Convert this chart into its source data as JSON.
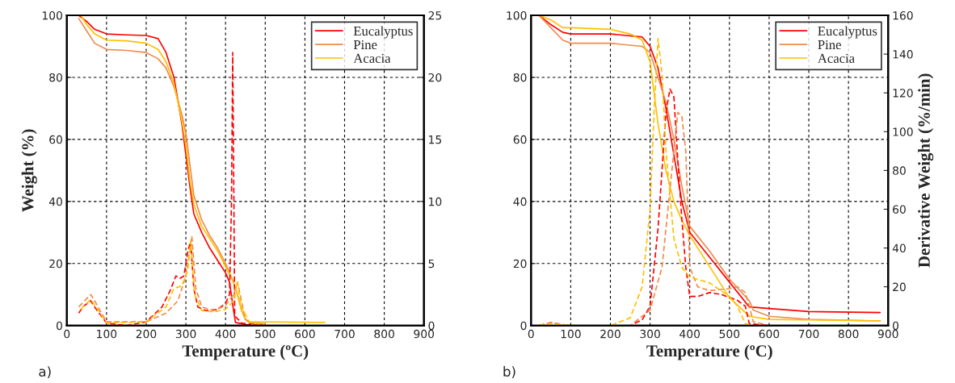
{
  "chart_data": [
    {
      "type": "line",
      "xlabel": "Temperature (ºC)",
      "ylabel": "Weight (%)",
      "xlim": [
        0,
        900
      ],
      "xticks": [
        0,
        100,
        200,
        300,
        400,
        500,
        600,
        700,
        800,
        900
      ],
      "ylim": [
        0,
        100
      ],
      "yticks": [
        0,
        20,
        40,
        60,
        80,
        100
      ],
      "y2lim": [
        0,
        25
      ],
      "y2ticks": [
        0,
        5,
        10,
        15,
        20,
        25
      ],
      "grid": true,
      "legend": "top right",
      "annotations": [
        "a)"
      ],
      "series": [
        {
          "name": "Eucalyptus",
          "color": "#ff0000",
          "x": [
            30,
            50,
            70,
            100,
            150,
            200,
            230,
            250,
            270,
            290,
            300,
            310,
            320,
            340,
            360,
            380,
            400,
            410,
            420,
            425,
            450,
            500
          ],
          "values": [
            100,
            98,
            95.5,
            94,
            93.7,
            93.5,
            92.5,
            88,
            80,
            65,
            55,
            45,
            36,
            30,
            25,
            21,
            17,
            14,
            5,
            1,
            0.3,
            0
          ]
        },
        {
          "name": "Pine",
          "color": "#f08a4b",
          "x": [
            30,
            50,
            70,
            100,
            150,
            200,
            230,
            250,
            270,
            290,
            300,
            310,
            320,
            340,
            360,
            380,
            400,
            420,
            430,
            440,
            450,
            460,
            500
          ],
          "values": [
            99,
            95,
            91,
            89,
            88.7,
            88,
            86,
            83,
            77,
            68,
            62,
            52,
            42,
            34,
            29,
            25,
            20,
            14,
            10,
            5,
            2,
            1,
            0.5
          ]
        },
        {
          "name": "Acacia",
          "color": "#ffc000",
          "x": [
            35,
            50,
            70,
            100,
            150,
            200,
            230,
            250,
            270,
            290,
            300,
            310,
            320,
            340,
            360,
            380,
            400,
            420,
            430,
            440,
            450,
            460,
            650
          ],
          "values": [
            100,
            97,
            94,
            92,
            91.8,
            91,
            89,
            85,
            78,
            66,
            58,
            47,
            39,
            32,
            28,
            24,
            19,
            14,
            10,
            5,
            2,
            1.2,
            1
          ]
        },
        {
          "color": "#ff0000",
          "axis": "y2",
          "line_style": "dashed",
          "x": [
            30,
            40,
            60,
            70,
            100,
            150,
            200,
            240,
            260,
            275,
            285,
            295,
            305,
            312,
            320,
            330,
            350,
            380,
            400,
            410,
            415,
            418,
            421,
            423,
            440,
            500,
            900
          ],
          "values": [
            1,
            1.5,
            2,
            1.5,
            0.2,
            0,
            0.3,
            1.5,
            2.8,
            4,
            3.8,
            4,
            6,
            6.8,
            3,
            1.5,
            1.2,
            1.3,
            1.8,
            2.5,
            10,
            22,
            10,
            0.8,
            0.2,
            0,
            0
          ]
        },
        {
          "color": "#f08a4b",
          "axis": "y2",
          "line_style": "dashed",
          "x": [
            30,
            60,
            70,
            100,
            200,
            250,
            280,
            300,
            315,
            325,
            340,
            370,
            400,
            420,
            430,
            440,
            450,
            470,
            900
          ],
          "values": [
            1.5,
            2.5,
            2,
            0.3,
            0.3,
            1,
            2,
            4,
            7.2,
            3,
            1.5,
            1.2,
            1.6,
            2.5,
            3.5,
            2,
            0.5,
            0,
            0
          ]
        },
        {
          "color": "#ffc000",
          "axis": "y2",
          "line_style": "dashed",
          "x": [
            35,
            60,
            80,
            100,
            200,
            250,
            270,
            290,
            305,
            312,
            322,
            340,
            370,
            400,
            420,
            430,
            440,
            460,
            500,
            650
          ],
          "values": [
            1.3,
            2.1,
            1.2,
            0.2,
            0.3,
            1.5,
            3,
            3.2,
            4.5,
            6.8,
            2.5,
            1.2,
            1.1,
            1.3,
            2,
            3.5,
            1.5,
            0.3,
            0,
            0
          ]
        }
      ]
    },
    {
      "type": "line",
      "xlabel": "Temperature (ºC)",
      "y2label": "Derivative Weight (%/min)",
      "xlim": [
        0,
        900
      ],
      "xticks": [
        0,
        100,
        200,
        300,
        400,
        500,
        600,
        700,
        800,
        900
      ],
      "ylim": [
        0,
        100
      ],
      "yticks": [
        0,
        20,
        40,
        60,
        80,
        100
      ],
      "y2lim": [
        0,
        160
      ],
      "y2ticks": [
        0,
        20,
        40,
        60,
        80,
        100,
        120,
        140,
        160
      ],
      "grid": true,
      "legend": "top right",
      "annotations": [
        "b)"
      ],
      "series": [
        {
          "name": "Eucalyptus",
          "color": "#ff0000",
          "x": [
            20,
            50,
            80,
            100,
            200,
            280,
            300,
            320,
            340,
            360,
            380,
            400,
            450,
            500,
            550,
            600,
            700,
            880
          ],
          "values": [
            100,
            97,
            94.5,
            94,
            94,
            93,
            90,
            83,
            70,
            55,
            40,
            30,
            22,
            14,
            6,
            5.5,
            4.5,
            4.2
          ]
        },
        {
          "name": "Pine",
          "color": "#f08a4b",
          "x": [
            20,
            50,
            80,
            100,
            200,
            280,
            300,
            320,
            340,
            360,
            380,
            400,
            450,
            500,
            550,
            560,
            600,
            700,
            880
          ],
          "values": [
            100,
            96,
            92,
            91,
            91,
            90,
            88,
            80,
            72,
            60,
            45,
            32,
            24,
            15,
            8,
            5,
            3,
            2,
            1.5
          ]
        },
        {
          "name": "Acacia",
          "color": "#ffc000",
          "x": [
            20,
            50,
            80,
            100,
            200,
            250,
            280,
            300,
            310,
            320,
            340,
            360,
            380,
            400,
            450,
            500,
            550,
            600,
            880
          ],
          "values": [
            100,
            98.5,
            96,
            96,
            95.5,
            94,
            92,
            85,
            75,
            65,
            50,
            40,
            34,
            29,
            19,
            9,
            3,
            2,
            1.5
          ]
        },
        {
          "color": "#ff0000",
          "axis": "y2",
          "line_style": "dashed",
          "x": [
            20,
            50,
            80,
            100,
            250,
            280,
            300,
            320,
            340,
            350,
            360,
            370,
            380,
            390,
            400,
            420,
            450,
            480,
            520,
            540,
            550,
            600,
            880
          ],
          "values": [
            0,
            1.5,
            0.5,
            0,
            0,
            3,
            10,
            50,
            110,
            122,
            118,
            85,
            55,
            30,
            15,
            15,
            17,
            16,
            13,
            10,
            1,
            0,
            0
          ]
        },
        {
          "color": "#f08a4b",
          "axis": "y2",
          "line_style": "dashed",
          "x": [
            20,
            50,
            100,
            250,
            300,
            330,
            350,
            370,
            380,
            390,
            400,
            420,
            450,
            500,
            520,
            540,
            550,
            560,
            600,
            880
          ],
          "values": [
            0,
            1.5,
            0,
            0,
            8,
            30,
            70,
            110,
            108,
            90,
            30,
            20,
            18,
            19,
            20,
            17,
            10,
            2,
            0,
            0
          ]
        },
        {
          "color": "#ffc000",
          "axis": "y2",
          "line_style": "dashed",
          "x": [
            20,
            50,
            100,
            200,
            250,
            280,
            300,
            310,
            320,
            330,
            340,
            360,
            380,
            400,
            450,
            500,
            520,
            540,
            560,
            880
          ],
          "values": [
            0,
            1,
            0,
            0,
            4,
            20,
            60,
            110,
            148,
            130,
            90,
            45,
            30,
            25,
            22,
            15,
            10,
            1,
            0,
            0
          ]
        }
      ]
    }
  ]
}
